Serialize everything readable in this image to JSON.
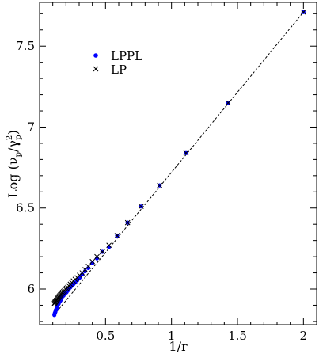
{
  "chart_data": {
    "type": "scatter",
    "xlabel": "1/r",
    "ylabel": {
      "prefix": "Log (",
      "nu": "ν",
      "slash": "/",
      "gamma": "γ",
      "sub": "p",
      "sup": "2",
      "suffix": ")"
    },
    "xlim": [
      0.0,
      2.1
    ],
    "ylim": [
      5.78,
      7.77
    ],
    "x_ticks": [
      {
        "value": 0.5,
        "label": "0.5"
      },
      {
        "value": 1.0,
        "label": "1"
      },
      {
        "value": 1.5,
        "label": "1.5"
      },
      {
        "value": 2.0,
        "label": "2"
      }
    ],
    "y_ticks": [
      {
        "value": 6.0,
        "label": "6"
      },
      {
        "value": 6.5,
        "label": "6.5"
      },
      {
        "value": 7.0,
        "label": "7"
      },
      {
        "value": 7.5,
        "label": "7.5"
      }
    ],
    "grid": false,
    "legend": {
      "placement": "top-left"
    },
    "series": [
      {
        "name": "LPPL",
        "marker": "dot",
        "color": "#0000ff",
        "x": [
          2.0,
          1.43,
          1.11,
          0.91,
          0.77,
          0.667,
          0.588,
          0.526,
          0.476,
          0.435,
          0.4,
          0.37,
          0.345,
          0.323,
          0.303,
          0.286,
          0.27,
          0.256,
          0.244,
          0.233,
          0.222,
          0.213,
          0.204,
          0.196,
          0.189,
          0.182,
          0.175,
          0.169,
          0.164,
          0.159,
          0.154,
          0.149,
          0.145,
          0.141,
          0.137,
          0.133,
          0.13,
          0.127,
          0.123,
          0.12,
          0.118,
          0.115,
          0.112
        ],
        "y": [
          7.71,
          7.15,
          6.84,
          6.64,
          6.51,
          6.41,
          6.33,
          6.26,
          6.23,
          6.19,
          6.16,
          6.13,
          6.11,
          6.09,
          6.07,
          6.055,
          6.04,
          6.03,
          6.02,
          6.01,
          6.0,
          5.99,
          5.98,
          5.975,
          5.97,
          5.96,
          5.955,
          5.95,
          5.94,
          5.93,
          5.925,
          5.92,
          5.91,
          5.905,
          5.9,
          5.89,
          5.88,
          5.875,
          5.87,
          5.86,
          5.855,
          5.85,
          5.84
        ]
      },
      {
        "name": "LP",
        "marker": "x",
        "color": "#000000",
        "x": [
          2.0,
          1.43,
          1.11,
          0.91,
          0.77,
          0.667,
          0.588,
          0.526,
          0.476,
          0.435,
          0.4,
          0.37,
          0.345,
          0.323,
          0.303,
          0.286,
          0.27,
          0.256,
          0.244,
          0.233,
          0.222,
          0.213,
          0.204,
          0.196,
          0.189,
          0.182,
          0.175,
          0.169,
          0.164,
          0.159,
          0.154,
          0.149,
          0.145,
          0.141,
          0.137,
          0.133,
          0.13,
          0.127,
          0.123,
          0.12,
          0.118,
          0.115,
          0.112
        ],
        "y": [
          7.71,
          7.15,
          6.84,
          6.64,
          6.51,
          6.41,
          6.33,
          6.27,
          6.23,
          6.2,
          6.17,
          6.14,
          6.12,
          6.1,
          6.085,
          6.07,
          6.06,
          6.05,
          6.04,
          6.03,
          6.02,
          6.01,
          6.005,
          6.0,
          5.99,
          5.985,
          5.98,
          5.975,
          5.97,
          5.965,
          5.96,
          5.955,
          5.95,
          5.945,
          5.94,
          5.935,
          5.93,
          5.93,
          5.925,
          5.92,
          5.92,
          5.915,
          5.91
        ]
      }
    ],
    "fit_line": {
      "style": "dashed",
      "color": "#000000",
      "x": [
        0.11,
        2.0
      ],
      "y": [
        5.84,
        7.71
      ]
    }
  }
}
